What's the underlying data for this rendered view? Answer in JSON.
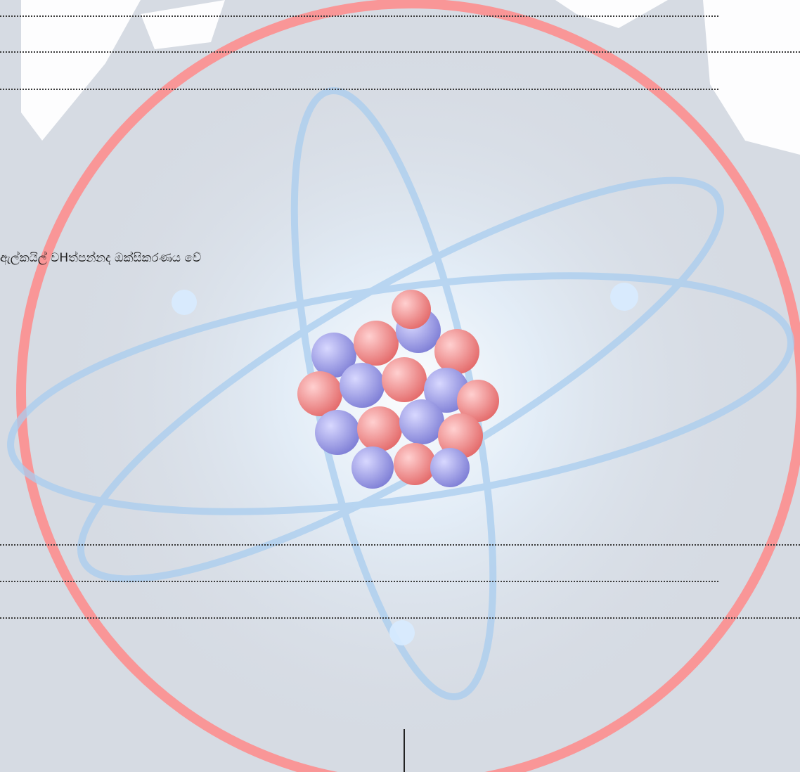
{
  "document": {
    "sentence_fragment": "ඇල්කයිල් වHත්පන්නද ඔක්සිකරණය වේ"
  },
  "watermark": {
    "ring_color": "#ff8a8a",
    "nucleus_colors": [
      "#f07f7f",
      "#8f8fe0"
    ],
    "orbit_color": "#9fc4ea",
    "glow_color": "#ffffff",
    "logo_color": "#ffffff"
  }
}
